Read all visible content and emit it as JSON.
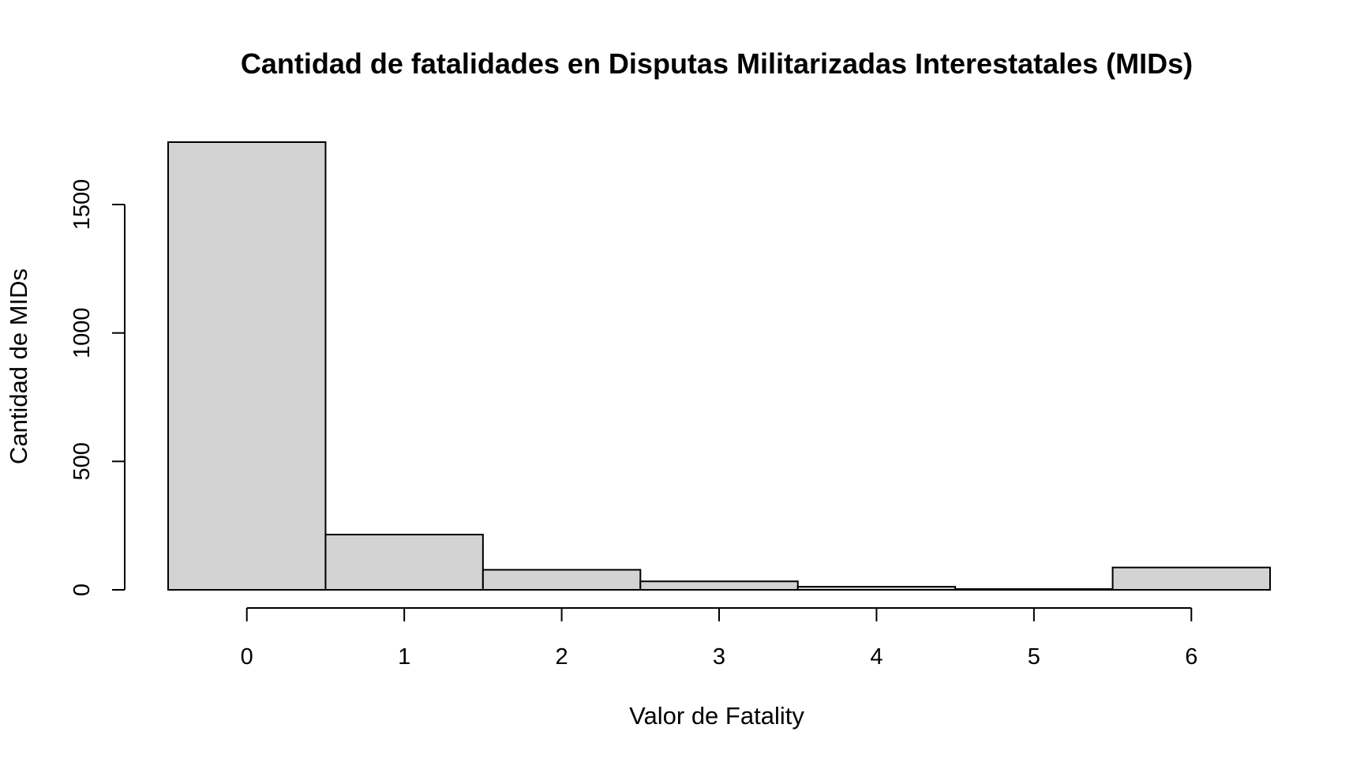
{
  "chart_data": {
    "type": "bar",
    "title": "Cantidad de fatalidades en Disputas Militarizadas Interestatales (MIDs)",
    "xlabel": "Valor de Fatality",
    "ylabel": "Cantidad de MIDs",
    "categories": [
      0,
      1,
      2,
      3,
      4,
      5,
      6
    ],
    "values": [
      1743,
      215,
      78,
      33,
      12,
      3,
      87
    ],
    "xlim": [
      -0.5,
      6.5
    ],
    "ylim": [
      0,
      1743
    ],
    "x_ticks": [
      "0",
      "1",
      "2",
      "3",
      "4",
      "5",
      "6"
    ],
    "y_ticks": [
      "0",
      "500",
      "1000",
      "1500"
    ],
    "bar_color": "#d3d3d3",
    "grid": false,
    "legend": false
  }
}
